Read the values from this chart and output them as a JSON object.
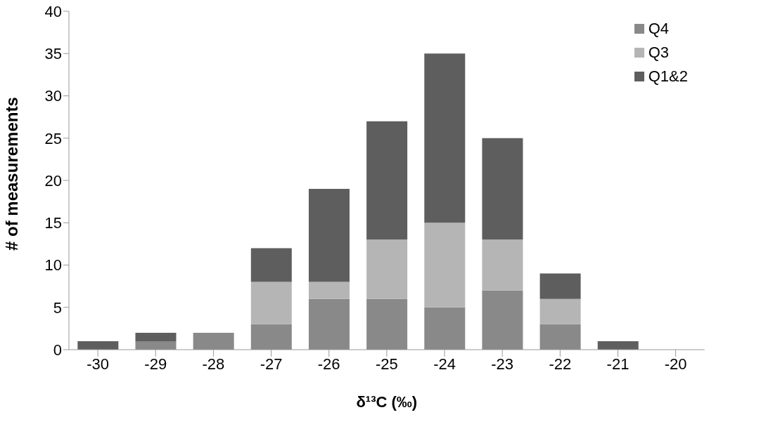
{
  "chart_data": {
    "type": "bar",
    "stacked": true,
    "xlabel": "δ¹³C (‰)",
    "ylabel": "# of measurements",
    "categories": [
      "-30",
      "-29",
      "-28",
      "-27",
      "-26",
      "-25",
      "-24",
      "-23",
      "-22",
      "-21",
      "-20"
    ],
    "series": [
      {
        "name": "Q4",
        "color": "#898989",
        "values": [
          0,
          1,
          2,
          3,
          6,
          6,
          5,
          7,
          3,
          0,
          0
        ]
      },
      {
        "name": "Q3",
        "color": "#b5b5b5",
        "values": [
          0,
          0,
          0,
          5,
          2,
          7,
          10,
          6,
          3,
          0,
          0
        ]
      },
      {
        "name": "Q1&2",
        "color": "#5e5e5e",
        "values": [
          1,
          1,
          0,
          4,
          11,
          14,
          20,
          12,
          3,
          1,
          0
        ]
      }
    ],
    "ylim": [
      0,
      40
    ],
    "yticks": [
      0,
      5,
      10,
      15,
      20,
      25,
      30,
      35,
      40
    ],
    "grid": false,
    "legend": "top right"
  }
}
